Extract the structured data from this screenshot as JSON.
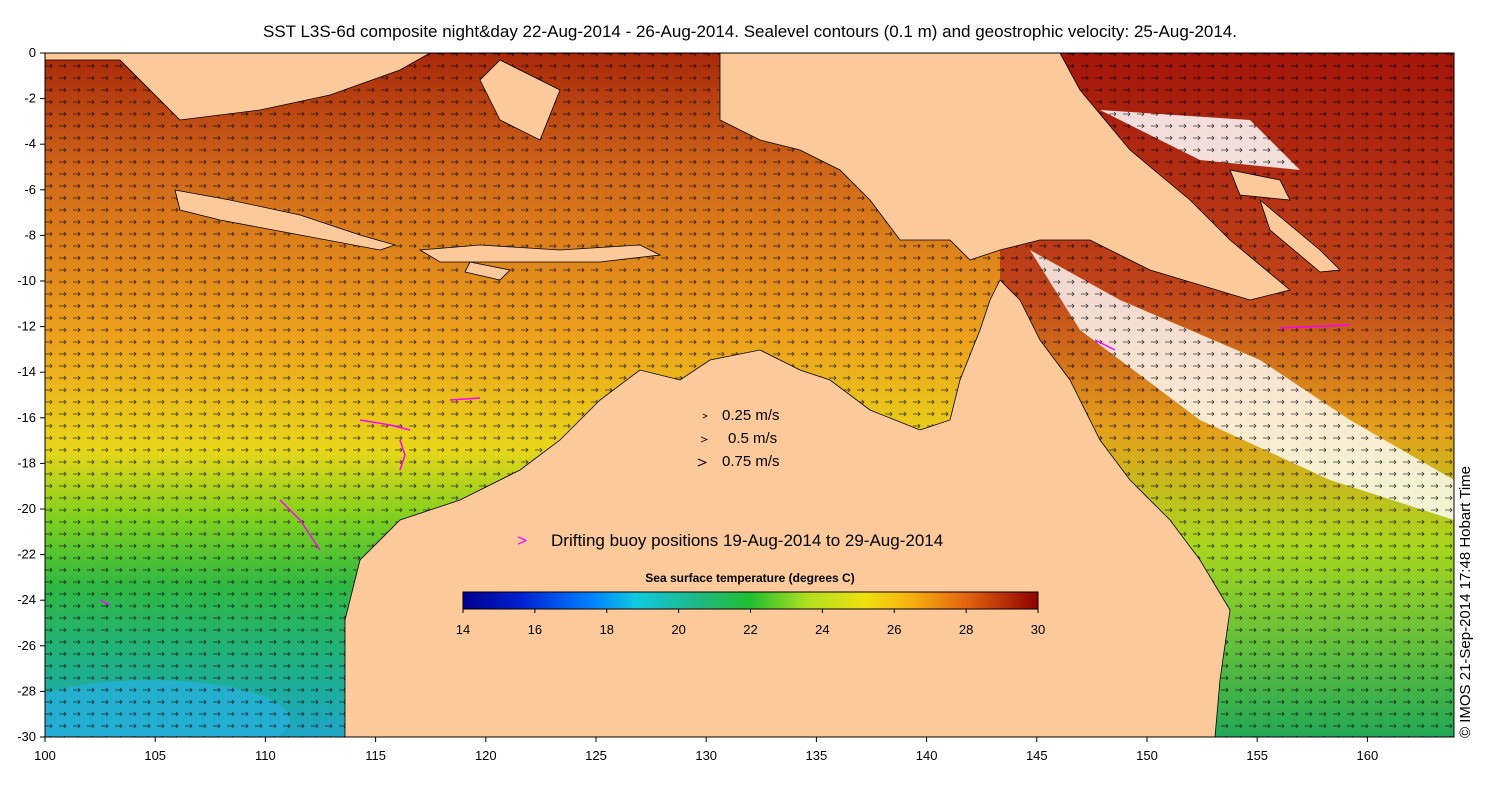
{
  "title": "SST L3S-6d composite night&day 22-Aug-2014 - 26-Aug-2014. Sealevel contours (0.1 m) and geostrophic velocity: 25-Aug-2014.",
  "axes": {
    "x_ticks": [
      "100",
      "105",
      "110",
      "115",
      "120",
      "125",
      "130",
      "135",
      "140",
      "145",
      "150",
      "155",
      "160"
    ],
    "y_ticks": [
      "0",
      "-2",
      "-4",
      "-6",
      "-8",
      "-10",
      "-12",
      "-14",
      "-16",
      "-18",
      "-20",
      "-22",
      "-24",
      "-26",
      "-28",
      "-30"
    ]
  },
  "velocity_legend": {
    "items": [
      {
        "label": "0.25 m/s",
        "speed": 0.25
      },
      {
        "label": "0.5 m/s",
        "speed": 0.5
      },
      {
        "label": "0.75 m/s",
        "speed": 0.75
      }
    ]
  },
  "buoy_legend": {
    "symbol": ">",
    "label": "Drifting buoy positions 19-Aug-2014 to 29-Aug-2014",
    "color": "#ff00ff"
  },
  "colorbar": {
    "title": "Sea surface temperature (degrees C)",
    "ticks": [
      "14",
      "16",
      "18",
      "20",
      "22",
      "24",
      "26",
      "28",
      "30"
    ],
    "min": 14,
    "max": 30
  },
  "credit": "© IMOS 21-Sep-2014 17:48 Hobart Time",
  "colors": {
    "land": "#fcc99a",
    "sst_cold": "#00008f",
    "sst_warm": "#8f0000"
  }
}
